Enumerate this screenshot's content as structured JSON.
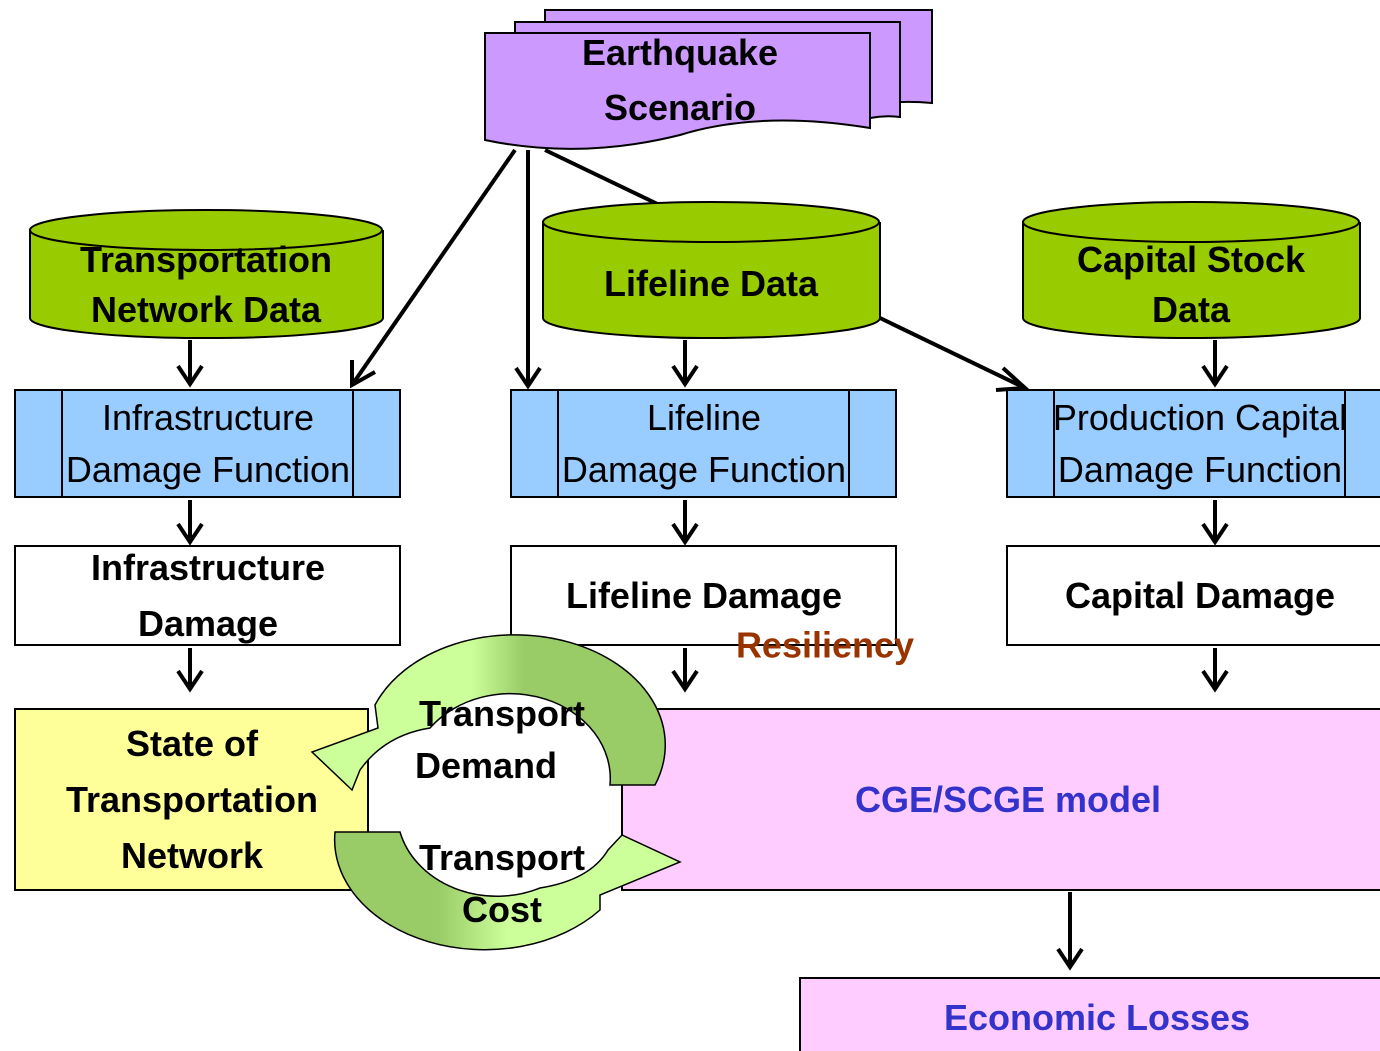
{
  "nodes": [
    {
      "id": "earthquake",
      "lines": [
        "Earthquake",
        "Scenario"
      ]
    },
    {
      "id": "transport-data",
      "lines": [
        "Transportation",
        "Network Data"
      ]
    },
    {
      "id": "lifeline-data",
      "lines": [
        "Lifeline Data"
      ]
    },
    {
      "id": "capital-data",
      "lines": [
        "Capital Stock",
        "Data"
      ]
    },
    {
      "id": "infra-func",
      "lines": [
        "Infrastructure",
        "Damage Function"
      ]
    },
    {
      "id": "lifeline-func",
      "lines": [
        "Lifeline",
        "Damage Function"
      ]
    },
    {
      "id": "capital-func",
      "lines": [
        "Production Capital",
        "Damage Function"
      ]
    },
    {
      "id": "infra-damage",
      "lines": [
        "Infrastructure",
        "Damage"
      ]
    },
    {
      "id": "lifeline-damage",
      "lines": [
        "Lifeline Damage"
      ]
    },
    {
      "id": "capital-damage",
      "lines": [
        "Capital Damage"
      ]
    },
    {
      "id": "state",
      "lines": [
        "State of",
        "Transportation",
        "Network"
      ]
    },
    {
      "id": "cge",
      "lines": [
        "CGE/SCGE model"
      ]
    },
    {
      "id": "losses",
      "lines": [
        "Economic Losses"
      ]
    }
  ],
  "labels": {
    "resiliency": "Resiliency",
    "demand": [
      "Transport",
      "Demand"
    ],
    "cost": [
      "Transport",
      "Cost"
    ]
  }
}
